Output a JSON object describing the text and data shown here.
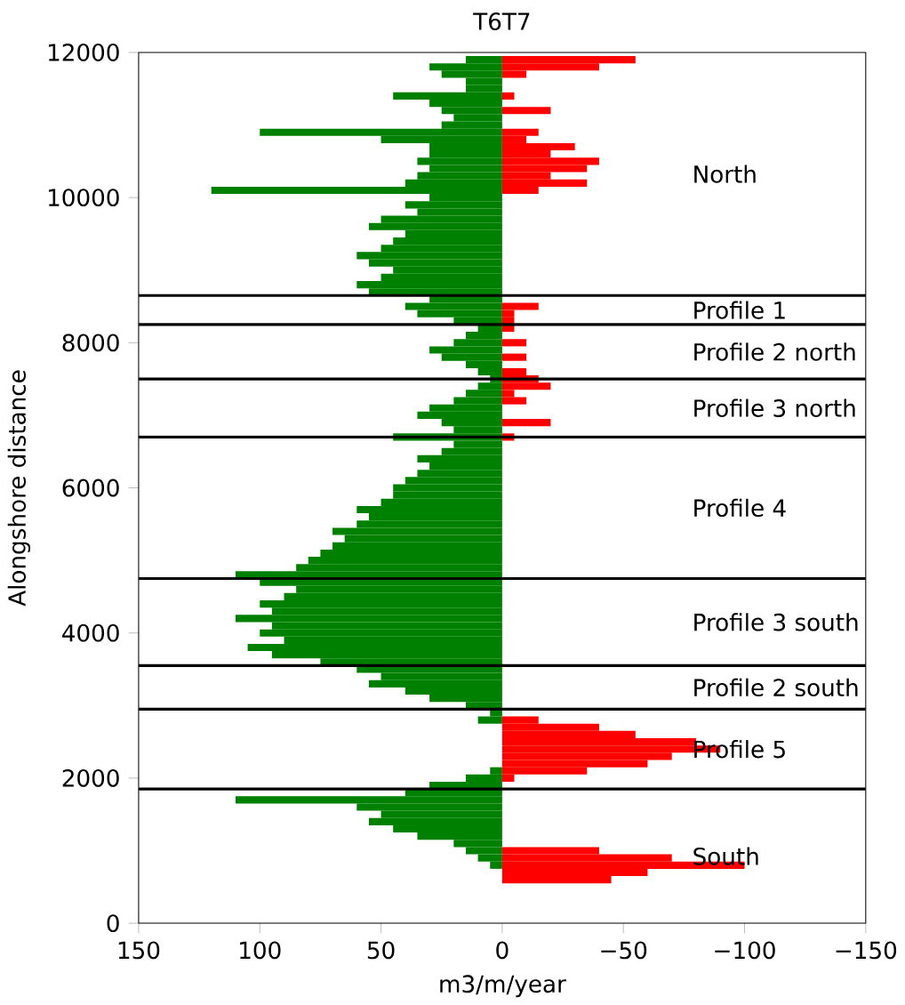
{
  "chart_data": {
    "type": "bar",
    "orientation": "horizontal",
    "title": "T6T7",
    "xlabel": "m3/m/year",
    "ylabel": "Alongshore distance",
    "xlim": [
      150,
      -150
    ],
    "xticks": [
      150,
      100,
      50,
      0,
      {
        "value": -50,
        "label": "−50"
      },
      {
        "value": -100,
        "label": "−100"
      },
      {
        "value": -150,
        "label": "−150"
      }
    ],
    "ylim": [
      0,
      12000
    ],
    "yticks": [
      0,
      2000,
      4000,
      6000,
      8000,
      10000,
      12000
    ],
    "x": [
      600,
      700,
      800,
      900,
      1000,
      1100,
      1200,
      1300,
      1400,
      1500,
      1600,
      1700,
      1800,
      1900,
      2000,
      2100,
      2200,
      2300,
      2400,
      2500,
      2600,
      2700,
      2800,
      2900,
      3000,
      3100,
      3200,
      3300,
      3400,
      3500,
      3600,
      3700,
      3800,
      3900,
      4000,
      4100,
      4200,
      4300,
      4400,
      4500,
      4600,
      4700,
      4800,
      4900,
      5000,
      5100,
      5200,
      5300,
      5400,
      5500,
      5600,
      5700,
      5800,
      5900,
      6000,
      6100,
      6200,
      6300,
      6400,
      6500,
      6600,
      6700,
      6800,
      6900,
      7000,
      7100,
      7200,
      7300,
      7400,
      7500,
      7600,
      7700,
      7800,
      7900,
      8000,
      8100,
      8200,
      8300,
      8400,
      8500,
      8600,
      8700,
      8800,
      8900,
      9000,
      9100,
      9200,
      9300,
      9400,
      9500,
      9600,
      9700,
      9800,
      9900,
      10000,
      10100,
      10200,
      10300,
      10400,
      10500,
      10600,
      10700,
      10800,
      10900,
      11000,
      11100,
      11200,
      11300,
      11400,
      11500,
      11600,
      11700,
      11800,
      11900
    ],
    "series": [
      {
        "color": "#008000",
        "values": [
          null,
          null,
          5,
          10,
          15,
          20,
          35,
          45,
          55,
          50,
          60,
          110,
          40,
          30,
          15,
          5,
          null,
          null,
          null,
          null,
          null,
          null,
          10,
          5,
          15,
          30,
          40,
          55,
          50,
          60,
          75,
          95,
          105,
          90,
          100,
          95,
          110,
          95,
          100,
          90,
          85,
          100,
          110,
          85,
          80,
          75,
          70,
          65,
          70,
          60,
          55,
          60,
          50,
          45,
          45,
          40,
          35,
          30,
          35,
          25,
          20,
          45,
          20,
          25,
          35,
          30,
          20,
          15,
          10,
          5,
          10,
          15,
          25,
          30,
          20,
          15,
          10,
          20,
          35,
          40,
          30,
          55,
          60,
          50,
          45,
          55,
          60,
          50,
          45,
          40,
          55,
          50,
          35,
          40,
          30,
          120,
          40,
          35,
          30,
          35,
          30,
          30,
          50,
          100,
          25,
          20,
          25,
          30,
          45,
          15,
          15,
          25,
          30,
          15
        ]
      },
      {
        "color": "#ff0000",
        "values": [
          -45,
          -60,
          -100,
          -70,
          -40,
          null,
          null,
          null,
          null,
          null,
          null,
          null,
          null,
          null,
          -5,
          -35,
          -60,
          -70,
          -90,
          -80,
          -55,
          -40,
          -15,
          null,
          null,
          null,
          null,
          null,
          null,
          null,
          null,
          null,
          null,
          null,
          null,
          null,
          null,
          null,
          null,
          null,
          null,
          null,
          null,
          null,
          null,
          null,
          null,
          null,
          null,
          null,
          null,
          null,
          null,
          null,
          null,
          null,
          null,
          null,
          null,
          null,
          null,
          -5,
          null,
          -20,
          null,
          null,
          -10,
          -5,
          -20,
          -15,
          -10,
          null,
          -10,
          null,
          -10,
          null,
          -5,
          -5,
          -5,
          -15,
          null,
          null,
          null,
          null,
          null,
          null,
          null,
          null,
          null,
          null,
          null,
          null,
          null,
          null,
          null,
          -15,
          -35,
          -20,
          -35,
          -40,
          -20,
          -30,
          -10,
          -15,
          null,
          null,
          -20,
          null,
          -5,
          null,
          null,
          -10,
          -40,
          -55
        ]
      }
    ],
    "ref_lines": [
      {
        "axis": "y",
        "value": 8650,
        "color": "#000000"
      },
      {
        "axis": "y",
        "value": 8250,
        "color": "#000000"
      },
      {
        "axis": "y",
        "value": 7500,
        "color": "#000000"
      },
      {
        "axis": "y",
        "value": 6700,
        "color": "#000000"
      },
      {
        "axis": "y",
        "value": 4750,
        "color": "#000000"
      },
      {
        "axis": "y",
        "value": 3550,
        "color": "#000000"
      },
      {
        "axis": "y",
        "value": 2950,
        "color": "#000000"
      },
      {
        "axis": "y",
        "value": 1850,
        "color": "#000000"
      }
    ],
    "annotations": [
      "North",
      "Profile 1",
      "Profile 2 north",
      "Profile 3 north",
      "Profile 4",
      "Profile 3 south",
      "Profile 2 south",
      "Profile 5",
      "South"
    ]
  }
}
